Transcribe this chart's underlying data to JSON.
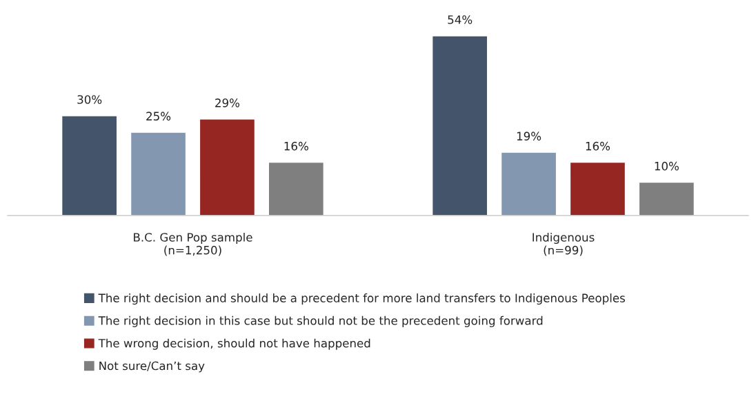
{
  "chart_data": {
    "type": "bar",
    "categories": [
      "B.C. Gen Pop sample\n(n=1,250)",
      "Indigenous\n(n=99)"
    ],
    "series": [
      {
        "name": "The right decision and should be a precedent for more land transfers to Indigenous Peoples",
        "color": "#44546a",
        "values": [
          30,
          54
        ],
        "value_labels": [
          "30%",
          "54%"
        ]
      },
      {
        "name": "The right decision in this case but should not be the precedent going forward",
        "color": "#8497b0",
        "values": [
          25,
          19
        ],
        "value_labels": [
          "25%",
          "19%"
        ]
      },
      {
        "name": "The wrong decision, should not have happened",
        "color": "#962622",
        "values": [
          29,
          16
        ],
        "value_labels": [
          "29%",
          "16%"
        ]
      },
      {
        "name": "Not sure/Can’t say",
        "color": "#7f7f7f",
        "values": [
          16,
          10
        ],
        "value_labels": [
          "16%",
          "10%"
        ]
      }
    ],
    "legend": "bottom",
    "grid": false
  }
}
